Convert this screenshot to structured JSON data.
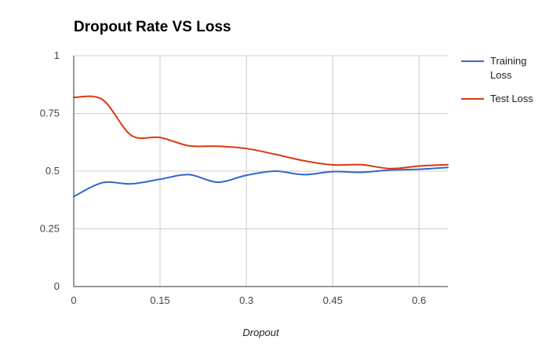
{
  "chart_data": {
    "type": "line",
    "title": "Dropout Rate VS Loss",
    "xlabel": "Dropout",
    "ylabel": "",
    "xlim": [
      0,
      0.65
    ],
    "ylim": [
      0,
      1
    ],
    "x_ticks": [
      "0",
      "0.15",
      "0.3",
      "0.45",
      "0.6"
    ],
    "x_tick_values": [
      0,
      0.15,
      0.3,
      0.45,
      0.6
    ],
    "y_ticks": [
      "0",
      "0.25",
      "0.5",
      "0.75",
      "1"
    ],
    "y_tick_values": [
      0,
      0.25,
      0.5,
      0.75,
      1
    ],
    "grid": true,
    "legend_position": "right",
    "x": [
      0,
      0.05,
      0.1,
      0.15,
      0.2,
      0.25,
      0.3,
      0.35,
      0.4,
      0.45,
      0.5,
      0.55,
      0.6,
      0.65
    ],
    "series": [
      {
        "name": "Training Loss",
        "name_lines": [
          "Training",
          "Loss"
        ],
        "color": "#3366cc",
        "values": [
          0.39,
          0.45,
          0.445,
          0.465,
          0.485,
          0.452,
          0.482,
          0.5,
          0.485,
          0.498,
          0.495,
          0.505,
          0.508,
          0.516
        ]
      },
      {
        "name": "Test Loss",
        "name_lines": [
          "Test Loss"
        ],
        "color": "#dc3912",
        "values": [
          0.82,
          0.81,
          0.655,
          0.646,
          0.61,
          0.608,
          0.598,
          0.573,
          0.545,
          0.527,
          0.528,
          0.511,
          0.522,
          0.528
        ]
      }
    ]
  }
}
